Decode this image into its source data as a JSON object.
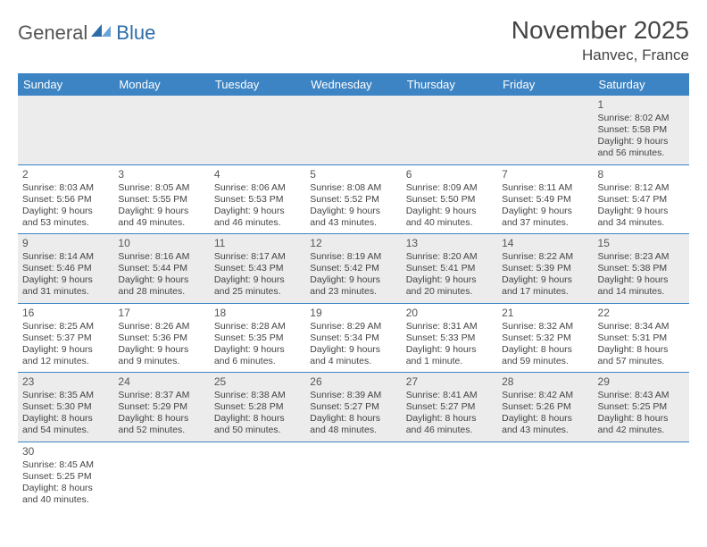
{
  "brand": {
    "part1": "General",
    "part2": "Blue"
  },
  "title": "November 2025",
  "location": "Hanvec, France",
  "colors": {
    "header_bg": "#3d84c4",
    "header_text": "#ffffff",
    "row_alt_bg": "#ececec",
    "cell_border": "#3d84c4",
    "text": "#444444",
    "brand_blue": "#2e6ca8"
  },
  "day_headers": [
    "Sunday",
    "Monday",
    "Tuesday",
    "Wednesday",
    "Thursday",
    "Friday",
    "Saturday"
  ],
  "weeks": [
    [
      null,
      null,
      null,
      null,
      null,
      null,
      {
        "n": "1",
        "sr": "8:02 AM",
        "ss": "5:58 PM",
        "dl": "9 hours and 56 minutes."
      }
    ],
    [
      {
        "n": "2",
        "sr": "8:03 AM",
        "ss": "5:56 PM",
        "dl": "9 hours and 53 minutes."
      },
      {
        "n": "3",
        "sr": "8:05 AM",
        "ss": "5:55 PM",
        "dl": "9 hours and 49 minutes."
      },
      {
        "n": "4",
        "sr": "8:06 AM",
        "ss": "5:53 PM",
        "dl": "9 hours and 46 minutes."
      },
      {
        "n": "5",
        "sr": "8:08 AM",
        "ss": "5:52 PM",
        "dl": "9 hours and 43 minutes."
      },
      {
        "n": "6",
        "sr": "8:09 AM",
        "ss": "5:50 PM",
        "dl": "9 hours and 40 minutes."
      },
      {
        "n": "7",
        "sr": "8:11 AM",
        "ss": "5:49 PM",
        "dl": "9 hours and 37 minutes."
      },
      {
        "n": "8",
        "sr": "8:12 AM",
        "ss": "5:47 PM",
        "dl": "9 hours and 34 minutes."
      }
    ],
    [
      {
        "n": "9",
        "sr": "8:14 AM",
        "ss": "5:46 PM",
        "dl": "9 hours and 31 minutes."
      },
      {
        "n": "10",
        "sr": "8:16 AM",
        "ss": "5:44 PM",
        "dl": "9 hours and 28 minutes."
      },
      {
        "n": "11",
        "sr": "8:17 AM",
        "ss": "5:43 PM",
        "dl": "9 hours and 25 minutes."
      },
      {
        "n": "12",
        "sr": "8:19 AM",
        "ss": "5:42 PM",
        "dl": "9 hours and 23 minutes."
      },
      {
        "n": "13",
        "sr": "8:20 AM",
        "ss": "5:41 PM",
        "dl": "9 hours and 20 minutes."
      },
      {
        "n": "14",
        "sr": "8:22 AM",
        "ss": "5:39 PM",
        "dl": "9 hours and 17 minutes."
      },
      {
        "n": "15",
        "sr": "8:23 AM",
        "ss": "5:38 PM",
        "dl": "9 hours and 14 minutes."
      }
    ],
    [
      {
        "n": "16",
        "sr": "8:25 AM",
        "ss": "5:37 PM",
        "dl": "9 hours and 12 minutes."
      },
      {
        "n": "17",
        "sr": "8:26 AM",
        "ss": "5:36 PM",
        "dl": "9 hours and 9 minutes."
      },
      {
        "n": "18",
        "sr": "8:28 AM",
        "ss": "5:35 PM",
        "dl": "9 hours and 6 minutes."
      },
      {
        "n": "19",
        "sr": "8:29 AM",
        "ss": "5:34 PM",
        "dl": "9 hours and 4 minutes."
      },
      {
        "n": "20",
        "sr": "8:31 AM",
        "ss": "5:33 PM",
        "dl": "9 hours and 1 minute."
      },
      {
        "n": "21",
        "sr": "8:32 AM",
        "ss": "5:32 PM",
        "dl": "8 hours and 59 minutes."
      },
      {
        "n": "22",
        "sr": "8:34 AM",
        "ss": "5:31 PM",
        "dl": "8 hours and 57 minutes."
      }
    ],
    [
      {
        "n": "23",
        "sr": "8:35 AM",
        "ss": "5:30 PM",
        "dl": "8 hours and 54 minutes."
      },
      {
        "n": "24",
        "sr": "8:37 AM",
        "ss": "5:29 PM",
        "dl": "8 hours and 52 minutes."
      },
      {
        "n": "25",
        "sr": "8:38 AM",
        "ss": "5:28 PM",
        "dl": "8 hours and 50 minutes."
      },
      {
        "n": "26",
        "sr": "8:39 AM",
        "ss": "5:27 PM",
        "dl": "8 hours and 48 minutes."
      },
      {
        "n": "27",
        "sr": "8:41 AM",
        "ss": "5:27 PM",
        "dl": "8 hours and 46 minutes."
      },
      {
        "n": "28",
        "sr": "8:42 AM",
        "ss": "5:26 PM",
        "dl": "8 hours and 43 minutes."
      },
      {
        "n": "29",
        "sr": "8:43 AM",
        "ss": "5:25 PM",
        "dl": "8 hours and 42 minutes."
      }
    ],
    [
      {
        "n": "30",
        "sr": "8:45 AM",
        "ss": "5:25 PM",
        "dl": "8 hours and 40 minutes."
      },
      null,
      null,
      null,
      null,
      null,
      null
    ]
  ],
  "labels": {
    "sunrise": "Sunrise:",
    "sunset": "Sunset:",
    "daylight": "Daylight:"
  }
}
